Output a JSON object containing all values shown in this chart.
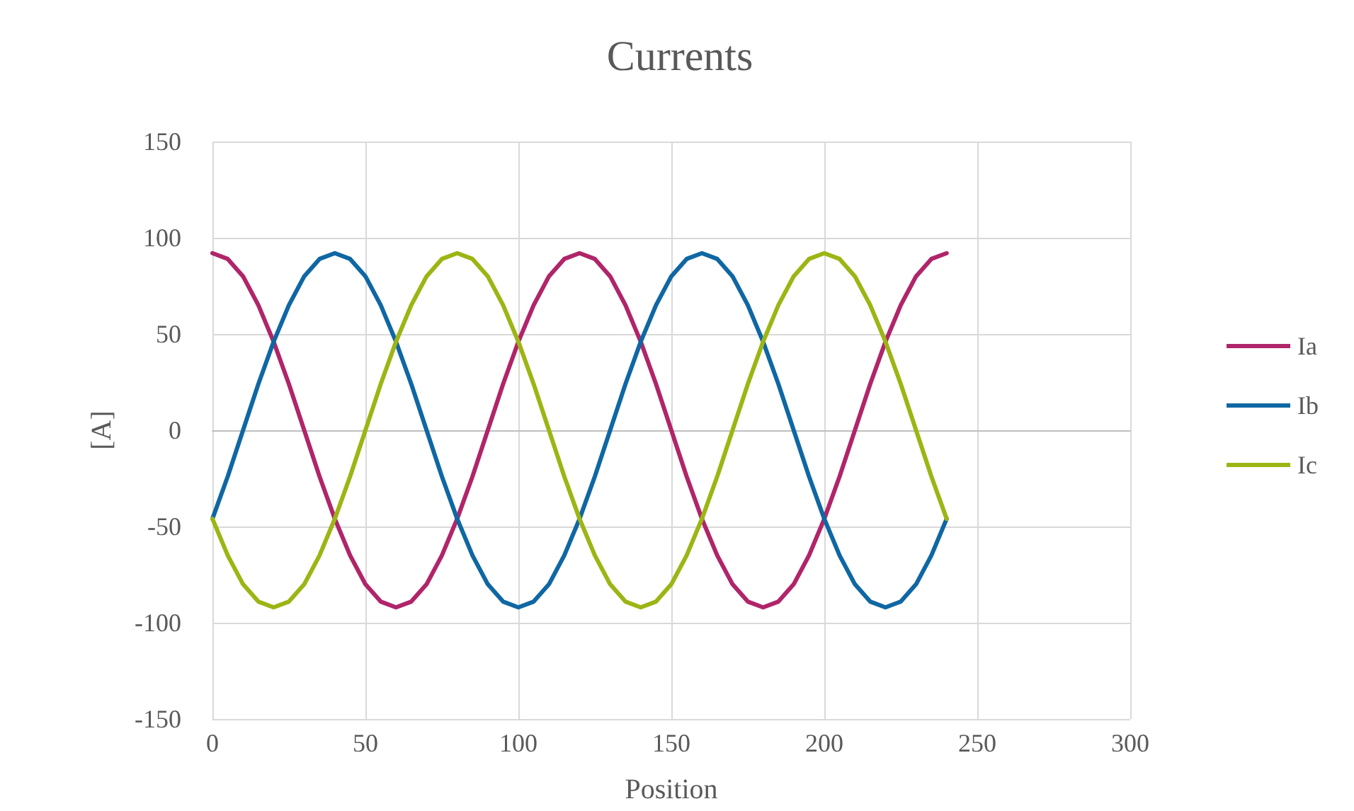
{
  "chart_data": {
    "type": "line",
    "title": "Currents",
    "xlabel": "Position",
    "ylabel": "[A]",
    "x": [
      0,
      5,
      10,
      15,
      20,
      25,
      30,
      35,
      40,
      45,
      50,
      55,
      60,
      65,
      70,
      75,
      80,
      85,
      90,
      95,
      100,
      105,
      110,
      115,
      120,
      125,
      130,
      135,
      140,
      145,
      150,
      155,
      160,
      165,
      170,
      175,
      180,
      185,
      190,
      195,
      200,
      205,
      210,
      215,
      220,
      225,
      230,
      235,
      240
    ],
    "series": [
      {
        "name": "Ia",
        "color": "#b0256a",
        "values": [
          92,
          89,
          80,
          65,
          46,
          24,
          0,
          -24,
          -46,
          -65,
          -80,
          -89,
          -92,
          -89,
          -80,
          -65,
          -46,
          -24,
          0,
          24,
          46,
          65,
          80,
          89,
          92,
          89,
          80,
          65,
          46,
          24,
          0,
          -24,
          -46,
          -65,
          -80,
          -89,
          -92,
          -89,
          -80,
          -65,
          -46,
          -24,
          0,
          24,
          46,
          65,
          80,
          89,
          92
        ]
      },
      {
        "name": "Ib",
        "color": "#0f67a3",
        "values": [
          -46,
          -24,
          0,
          24,
          46,
          65,
          80,
          89,
          92,
          89,
          80,
          65,
          46,
          24,
          0,
          -24,
          -46,
          -65,
          -80,
          -89,
          -92,
          -89,
          -80,
          -65,
          -46,
          -24,
          0,
          24,
          46,
          65,
          80,
          89,
          92,
          89,
          80,
          65,
          46,
          24,
          0,
          -24,
          -46,
          -65,
          -80,
          -89,
          -92,
          -89,
          -80,
          -65,
          -46
        ]
      },
      {
        "name": "Ic",
        "color": "#9db514",
        "values": [
          -46,
          -65,
          -80,
          -89,
          -92,
          -89,
          -80,
          -65,
          -46,
          -24,
          0,
          24,
          46,
          65,
          80,
          89,
          92,
          89,
          80,
          65,
          46,
          24,
          0,
          -24,
          -46,
          -65,
          -80,
          -89,
          -92,
          -89,
          -80,
          -65,
          -46,
          -24,
          0,
          24,
          46,
          65,
          80,
          89,
          92,
          89,
          80,
          65,
          46,
          24,
          0,
          -24,
          -46
        ]
      }
    ],
    "xlim": [
      0,
      300
    ],
    "xticks": [
      0,
      50,
      100,
      150,
      200,
      250,
      300
    ],
    "ylim": [
      -150,
      150
    ],
    "yticks": [
      -150,
      -100,
      -50,
      0,
      50,
      100,
      150
    ],
    "grid": true,
    "legend": "right",
    "marker": "none",
    "line_style": "solid"
  }
}
